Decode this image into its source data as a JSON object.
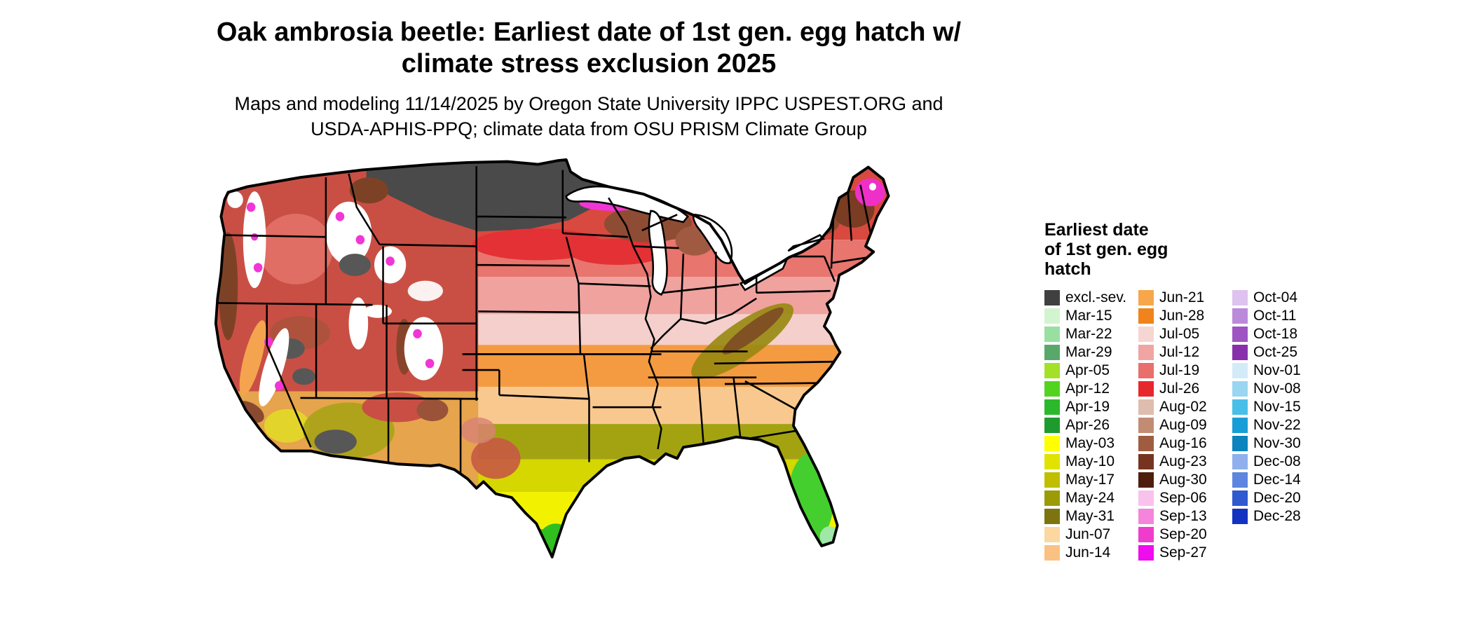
{
  "title": {
    "line1": "Oak ambrosia beetle: Earliest date of 1st gen. egg hatch w/",
    "line2": "climate stress exclusion 2025"
  },
  "subtitle": {
    "line1": "Maps and modeling 11/14/2025 by Oregon State University IPPC USPEST.ORG and",
    "line2": "USDA-APHIS-PPQ; climate data from OSU PRISM Climate Group"
  },
  "map_alt_text": "Choropleth raster map of the contiguous United States colored by earliest date of first generation egg hatch, with state borders and Great Lakes shown",
  "legend": {
    "title_lines": [
      "Earliest date",
      "of 1st gen. egg",
      "hatch"
    ],
    "columns": [
      [
        {
          "label": "excl.-sev.",
          "color": "#404040"
        },
        {
          "label": "Mar-15",
          "color": "#d2f5cf"
        },
        {
          "label": "Mar-22",
          "color": "#98dfa2"
        },
        {
          "label": "Mar-29",
          "color": "#58a86c"
        },
        {
          "label": "Apr-05",
          "color": "#a2e128"
        },
        {
          "label": "Apr-12",
          "color": "#52d41e"
        },
        {
          "label": "Apr-19",
          "color": "#2cb82c"
        },
        {
          "label": "Apr-26",
          "color": "#1e9b2e"
        },
        {
          "label": "May-03",
          "color": "#ffff00"
        },
        {
          "label": "May-10",
          "color": "#e2e200"
        },
        {
          "label": "May-17",
          "color": "#bfbf00"
        },
        {
          "label": "May-24",
          "color": "#9b9b06"
        },
        {
          "label": "May-31",
          "color": "#7d7410"
        },
        {
          "label": "Jun-07",
          "color": "#fcd7a2"
        },
        {
          "label": "Jun-14",
          "color": "#fac182"
        }
      ],
      [
        {
          "label": "Jun-21",
          "color": "#f7a74a"
        },
        {
          "label": "Jun-28",
          "color": "#f0831c"
        },
        {
          "label": "Jul-05",
          "color": "#f6d6d2"
        },
        {
          "label": "Jul-12",
          "color": "#f0a5a2"
        },
        {
          "label": "Jul-19",
          "color": "#e86f6c"
        },
        {
          "label": "Jul-26",
          "color": "#e6282d"
        },
        {
          "label": "Aug-02",
          "color": "#debcae"
        },
        {
          "label": "Aug-09",
          "color": "#c28c74"
        },
        {
          "label": "Aug-16",
          "color": "#a05c40"
        },
        {
          "label": "Aug-23",
          "color": "#763420"
        },
        {
          "label": "Aug-30",
          "color": "#4d1e0e"
        },
        {
          "label": "Sep-06",
          "color": "#f9c2ec"
        },
        {
          "label": "Sep-13",
          "color": "#f584dc"
        },
        {
          "label": "Sep-20",
          "color": "#f03ccd"
        },
        {
          "label": "Sep-27",
          "color": "#ef0cef"
        }
      ],
      [
        {
          "label": "Oct-04",
          "color": "#dec2ef"
        },
        {
          "label": "Oct-11",
          "color": "#bc8ada"
        },
        {
          "label": "Oct-18",
          "color": "#9f54c4"
        },
        {
          "label": "Oct-25",
          "color": "#8830ac"
        },
        {
          "label": "Nov-01",
          "color": "#d3ebf8"
        },
        {
          "label": "Nov-08",
          "color": "#99d6f2"
        },
        {
          "label": "Nov-15",
          "color": "#48bfe8"
        },
        {
          "label": "Nov-22",
          "color": "#189ed6"
        },
        {
          "label": "Nov-30",
          "color": "#0c84bd"
        },
        {
          "label": "Dec-08",
          "color": "#8fb0ec"
        },
        {
          "label": "Dec-14",
          "color": "#5c85e0"
        },
        {
          "label": "Dec-20",
          "color": "#2f5ad0"
        },
        {
          "label": "Dec-28",
          "color": "#1432c2"
        }
      ]
    ]
  }
}
